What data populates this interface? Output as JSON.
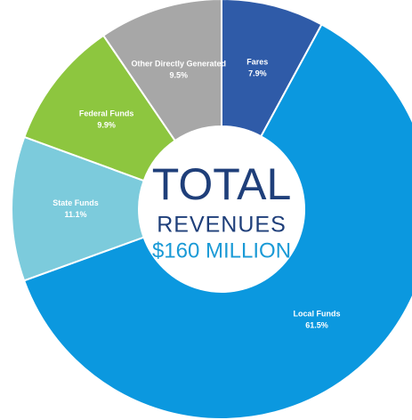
{
  "chart_data": {
    "type": "donut",
    "categories": [
      "Fares",
      "Local Funds",
      "State Funds",
      "Federal Funds",
      "Other Directly Generated"
    ],
    "values": [
      7.9,
      61.5,
      11.1,
      9.9,
      9.5
    ],
    "value_labels": [
      "7.9%",
      "61.5%",
      "11.1%",
      "9.9%",
      "9.5%"
    ],
    "colors": [
      "#2f5ba8",
      "#0b98df",
      "#7ccbdc",
      "#8dc63f",
      "#a7a7a7"
    ],
    "annotations": [
      "TOTAL",
      "REVENUES",
      "$160 MILLION"
    ]
  }
}
